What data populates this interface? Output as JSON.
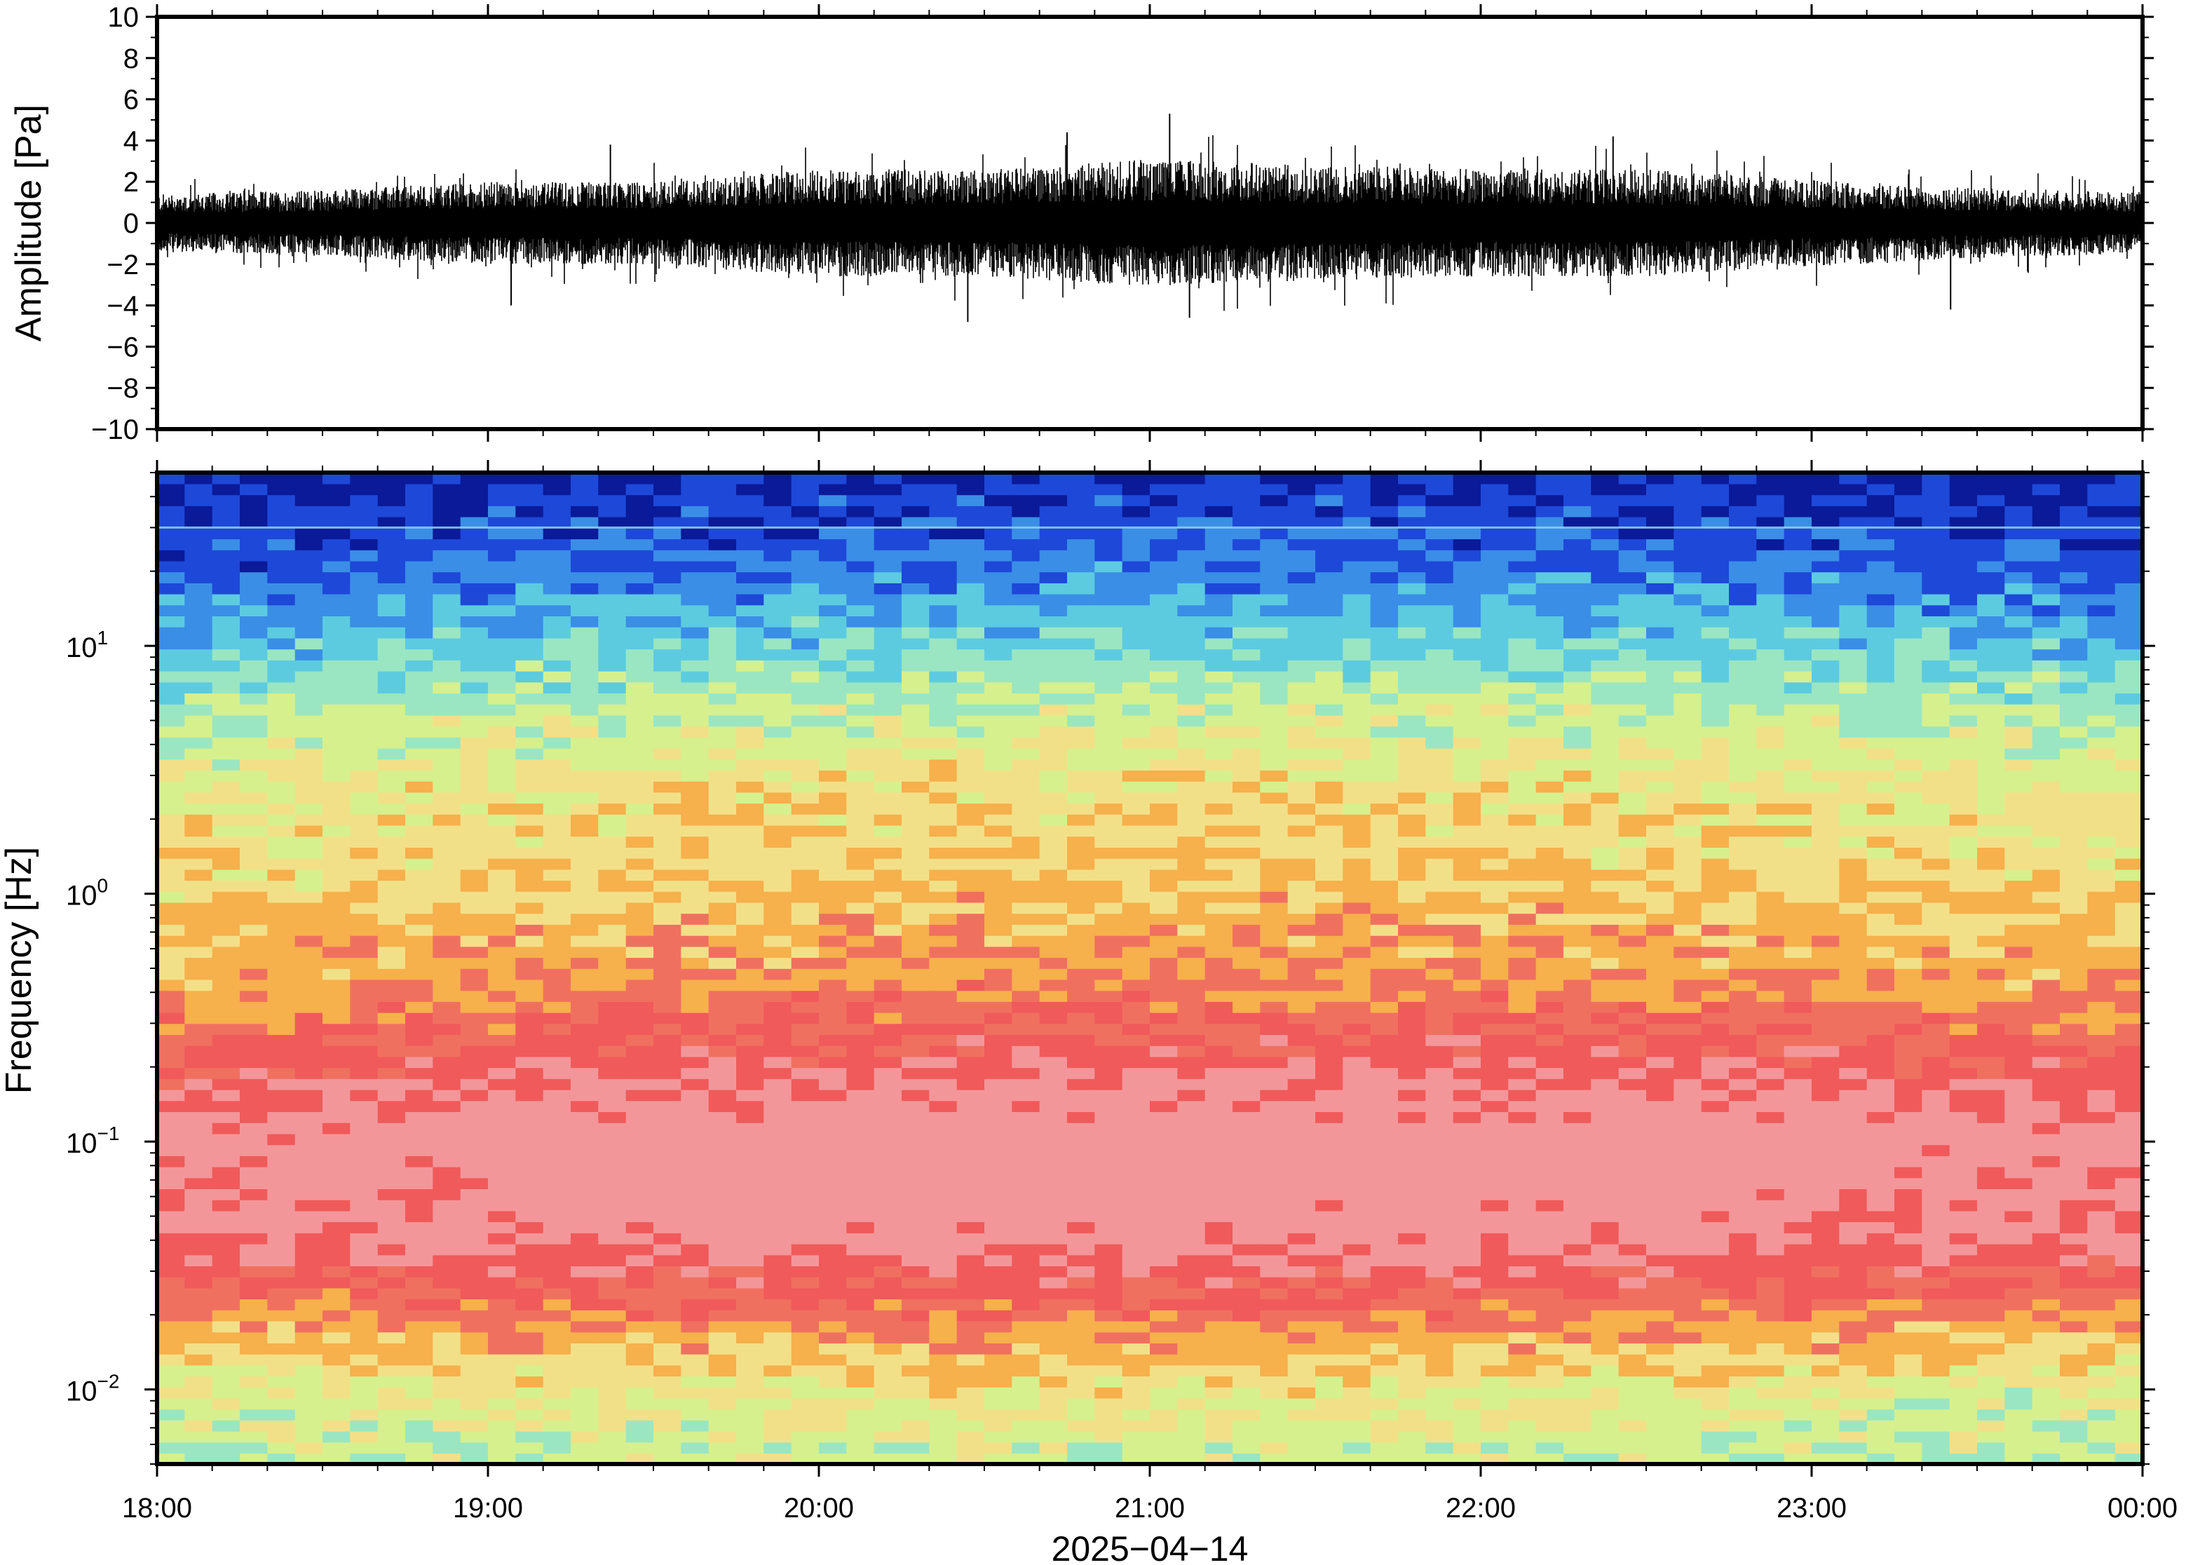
{
  "chart_data": [
    {
      "type": "line",
      "panel": "waveform",
      "ylabel": "Amplitude [Pa]",
      "ylim": [
        -10,
        10
      ],
      "yticks": [
        10,
        8,
        6,
        4,
        2,
        0,
        -2,
        -4,
        -6,
        -8,
        -10
      ],
      "ytick_labels": [
        "10",
        "8",
        "6",
        "4",
        "2",
        "0",
        "−2",
        "−4",
        "−6",
        "−8",
        "−10"
      ],
      "xlim": [
        "2025-04-14 18:00",
        "2025-04-15 00:00"
      ],
      "line_color": "#000000",
      "envelope_hours": [
        18.0,
        18.5,
        19.0,
        19.5,
        20.0,
        20.5,
        21.0,
        21.5,
        22.0,
        22.5,
        23.0,
        23.5,
        24.0
      ],
      "envelope_pa": [
        1.4,
        1.6,
        2.0,
        2.0,
        2.6,
        2.6,
        3.1,
        2.8,
        2.6,
        2.6,
        2.1,
        1.7,
        1.5
      ],
      "peaks": [
        {
          "hour": 19.37,
          "value": 3.8
        },
        {
          "hour": 20.75,
          "value": 4.4
        },
        {
          "hour": 21.06,
          "value": 5.3
        },
        {
          "hour": 22.4,
          "value": 4.2
        },
        {
          "hour": 20.45,
          "value": -4.8
        },
        {
          "hour": 21.12,
          "value": -4.6
        },
        {
          "hour": 23.42,
          "value": -4.2
        },
        {
          "hour": 19.07,
          "value": -4.0
        }
      ]
    },
    {
      "type": "heatmap",
      "panel": "spectrogram",
      "ylabel": "Frequency [Hz]",
      "xlabel": "2025−04−14",
      "yscale": "log",
      "ylim_hz": [
        0.005,
        50
      ],
      "yticks_hz": [
        0.01,
        0.1,
        1,
        10
      ],
      "ytick_base": "10",
      "ytick_exponents": [
        "−2",
        "−1",
        "0",
        "1"
      ],
      "xticks": [
        "18:00",
        "19:00",
        "20:00",
        "21:00",
        "22:00",
        "23:00",
        "00:00"
      ],
      "colormap": [
        "#0a1a99",
        "#1e48d8",
        "#3a8ee6",
        "#5ccbe0",
        "#9ae6c2",
        "#d6f08e",
        "#f2e088",
        "#f6b04c",
        "#f07060",
        "#f05a5a",
        "#f3969a"
      ],
      "relative_level_by_log10_hz": [
        {
          "log10_hz": -2.3,
          "level": 0.45
        },
        {
          "log10_hz": -2.0,
          "level": 0.52
        },
        {
          "log10_hz": -1.7,
          "level": 0.72
        },
        {
          "log10_hz": -1.4,
          "level": 0.92
        },
        {
          "log10_hz": -1.0,
          "level": 0.97
        },
        {
          "log10_hz": -0.7,
          "level": 0.85
        },
        {
          "log10_hz": -0.4,
          "level": 0.7
        },
        {
          "log10_hz": 0.0,
          "level": 0.6
        },
        {
          "log10_hz": 0.4,
          "level": 0.55
        },
        {
          "log10_hz": 0.8,
          "level": 0.42
        },
        {
          "log10_hz": 1.1,
          "level": 0.25
        },
        {
          "log10_hz": 1.4,
          "level": 0.12
        },
        {
          "log10_hz": 1.7,
          "level": 0.04
        }
      ],
      "line_hz": 30
    }
  ]
}
